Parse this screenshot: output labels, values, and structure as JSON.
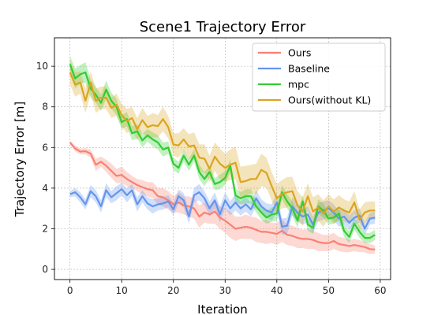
{
  "chart_data": {
    "type": "line",
    "title": "Scene1 Trajectory Error",
    "xlabel": "Iteration",
    "ylabel": "Trajectory Error [m]",
    "xlim": [
      -3,
      62
    ],
    "ylim": [
      -0.5,
      11.4
    ],
    "xticks": [
      0,
      10,
      20,
      30,
      40,
      50,
      60
    ],
    "yticks": [
      0,
      2,
      4,
      6,
      8,
      10
    ],
    "grid": true,
    "legend": "top-right",
    "series": [
      {
        "name": "Ours",
        "color": "#fa8072",
        "values": [
          6.25,
          5.95,
          5.8,
          5.82,
          5.7,
          5.15,
          5.3,
          5.1,
          4.85,
          4.6,
          4.65,
          4.45,
          4.3,
          4.15,
          4.05,
          3.95,
          3.9,
          3.6,
          3.55,
          3.4,
          3.2,
          3.3,
          3.15,
          3.1,
          3.0,
          2.6,
          2.8,
          2.7,
          2.85,
          2.55,
          2.4,
          2.2,
          2.0,
          2.05,
          2.1,
          2.05,
          1.95,
          1.85,
          1.85,
          1.8,
          1.75,
          1.9,
          1.7,
          1.65,
          1.55,
          1.5,
          1.5,
          1.45,
          1.35,
          1.3,
          1.3,
          1.4,
          1.25,
          1.2,
          1.15,
          1.2,
          1.15,
          1.1,
          1.0,
          0.98
        ],
        "spread": [
          0.1,
          0.15,
          0.15,
          0.15,
          0.2,
          0.3,
          0.25,
          0.3,
          0.35,
          0.35,
          0.4,
          0.35,
          0.3,
          0.3,
          0.35,
          0.35,
          0.4,
          0.4,
          0.45,
          0.45,
          0.4,
          0.5,
          0.45,
          0.5,
          0.5,
          0.55,
          0.5,
          0.45,
          0.6,
          0.55,
          0.6,
          0.65,
          0.6,
          0.55,
          0.6,
          0.55,
          0.6,
          0.55,
          0.6,
          0.5,
          0.55,
          0.55,
          0.5,
          0.5,
          0.5,
          0.45,
          0.5,
          0.45,
          0.45,
          0.4,
          0.4,
          0.4,
          0.35,
          0.35,
          0.3,
          0.3,
          0.3,
          0.25,
          0.25,
          0.2
        ]
      },
      {
        "name": "Baseline",
        "color": "#6495ed",
        "values": [
          3.7,
          3.8,
          3.55,
          3.2,
          3.85,
          3.6,
          3.1,
          3.9,
          3.55,
          3.75,
          3.95,
          3.65,
          3.9,
          3.2,
          3.6,
          3.25,
          3.1,
          3.2,
          3.25,
          3.35,
          2.95,
          3.6,
          3.4,
          2.6,
          3.65,
          3.8,
          3.5,
          3.0,
          3.4,
          2.7,
          3.4,
          3.0,
          3.3,
          3.0,
          3.2,
          2.95,
          3.5,
          3.1,
          2.9,
          2.8,
          3.3,
          2.1,
          2.15,
          3.1,
          2.8,
          2.6,
          2.7,
          2.2,
          2.8,
          2.9,
          3.0,
          2.8,
          2.5,
          2.6,
          2.3,
          2.55,
          2.65,
          2.0,
          2.5,
          2.55
        ],
        "spread": [
          0.15,
          0.2,
          0.25,
          0.25,
          0.3,
          0.3,
          0.3,
          0.35,
          0.3,
          0.35,
          0.3,
          0.35,
          0.3,
          0.35,
          0.3,
          0.3,
          0.35,
          0.3,
          0.3,
          0.3,
          0.3,
          0.35,
          0.35,
          0.35,
          0.35,
          0.4,
          0.35,
          0.35,
          0.4,
          0.4,
          0.4,
          0.35,
          0.4,
          0.35,
          0.35,
          0.35,
          0.4,
          0.35,
          0.35,
          0.4,
          0.45,
          0.4,
          0.4,
          0.45,
          0.45,
          0.4,
          0.4,
          0.4,
          0.45,
          0.45,
          0.4,
          0.4,
          0.4,
          0.4,
          0.35,
          0.35,
          0.35,
          0.3,
          0.3,
          0.3
        ]
      },
      {
        "name": "mpc",
        "color": "#32cd32",
        "values": [
          10.1,
          9.4,
          9.6,
          9.7,
          8.9,
          8.6,
          8.2,
          8.85,
          8.3,
          8.0,
          7.25,
          7.4,
          6.7,
          6.8,
          6.35,
          6.6,
          6.4,
          6.25,
          5.9,
          6.0,
          5.2,
          5.0,
          5.6,
          5.15,
          5.6,
          4.8,
          4.45,
          4.8,
          4.2,
          4.3,
          4.5,
          5.1,
          3.65,
          3.5,
          3.6,
          3.6,
          3.1,
          2.8,
          2.55,
          2.7,
          2.75,
          3.8,
          3.35,
          3.0,
          2.4,
          3.35,
          2.2,
          2.05,
          3.1,
          2.9,
          2.5,
          2.55,
          2.75,
          1.9,
          1.6,
          2.25,
          1.85,
          1.55,
          1.55,
          1.7
        ],
        "spread": [
          0.4,
          0.5,
          0.45,
          0.5,
          0.45,
          0.4,
          0.4,
          0.45,
          0.4,
          0.4,
          0.35,
          0.35,
          0.35,
          0.35,
          0.35,
          0.3,
          0.35,
          0.35,
          0.35,
          0.3,
          0.3,
          0.3,
          0.3,
          0.3,
          0.3,
          0.35,
          0.35,
          0.3,
          0.3,
          0.35,
          0.35,
          0.3,
          0.35,
          0.3,
          0.35,
          0.35,
          0.3,
          0.35,
          0.3,
          0.35,
          0.35,
          0.35,
          0.35,
          0.35,
          0.35,
          0.3,
          0.3,
          0.3,
          0.35,
          0.35,
          0.3,
          0.3,
          0.35,
          0.3,
          0.3,
          0.3,
          0.3,
          0.25,
          0.25,
          0.25
        ]
      },
      {
        "name": "Ours(without KL)",
        "color": "#daa520",
        "values": [
          9.7,
          9.1,
          9.2,
          8.3,
          9.2,
          8.3,
          8.45,
          8.45,
          7.95,
          8.1,
          7.6,
          7.3,
          7.45,
          6.9,
          7.35,
          7.0,
          7.1,
          7.05,
          7.4,
          7.0,
          6.15,
          6.1,
          6.4,
          6.05,
          6.1,
          5.5,
          5.45,
          4.95,
          5.55,
          5.2,
          5.0,
          5.15,
          5.25,
          4.3,
          4.35,
          4.45,
          4.45,
          4.9,
          4.75,
          4.1,
          3.5,
          3.7,
          3.8,
          3.85,
          3.15,
          2.85,
          3.6,
          2.85,
          3.05,
          2.75,
          3.1,
          2.85,
          3.05,
          2.9,
          2.8,
          3.3,
          2.45,
          2.8,
          2.9,
          2.9
        ],
        "spread": [
          0.6,
          0.6,
          0.55,
          0.6,
          0.55,
          0.6,
          0.55,
          0.55,
          0.5,
          0.55,
          0.55,
          0.6,
          0.55,
          0.55,
          0.6,
          0.55,
          0.6,
          0.55,
          0.6,
          0.55,
          0.55,
          0.6,
          0.55,
          0.6,
          0.65,
          0.65,
          0.7,
          0.65,
          0.7,
          0.75,
          0.7,
          0.75,
          0.8,
          0.75,
          0.75,
          0.7,
          0.75,
          0.8,
          0.75,
          0.7,
          0.7,
          0.7,
          0.75,
          0.7,
          0.7,
          0.7,
          0.65,
          0.7,
          0.65,
          0.65,
          0.6,
          0.6,
          0.6,
          0.55,
          0.55,
          0.55,
          0.5,
          0.5,
          0.45,
          0.45
        ]
      }
    ]
  }
}
